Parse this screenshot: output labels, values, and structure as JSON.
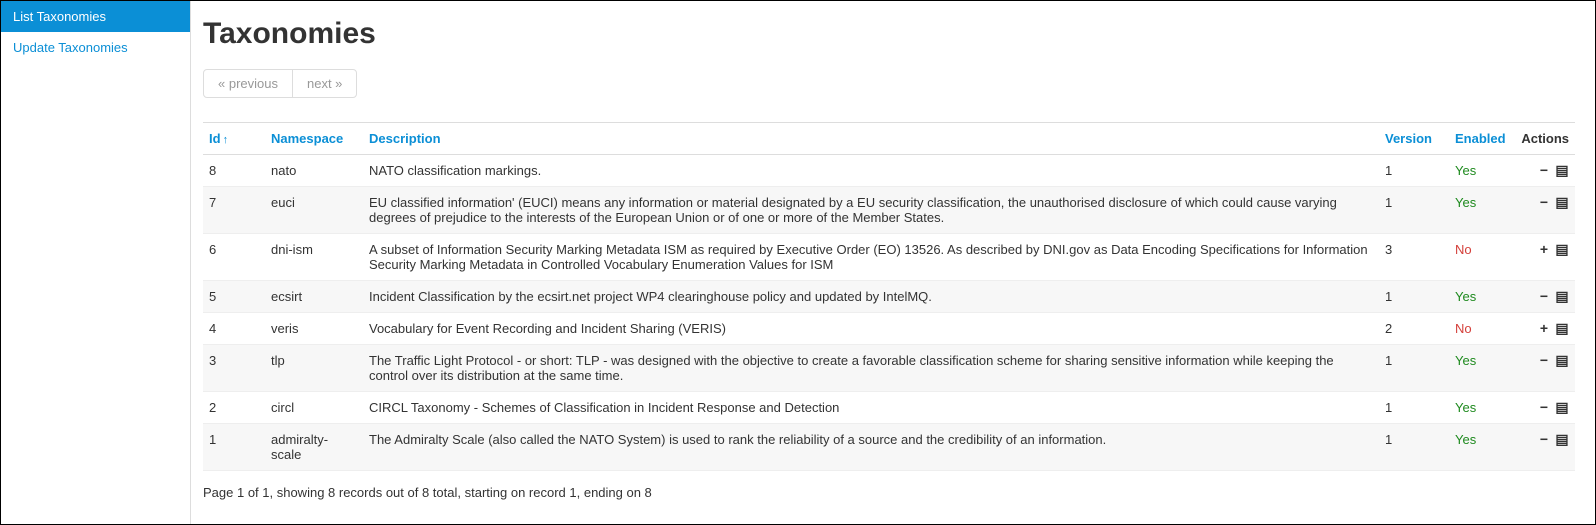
{
  "sidebar": {
    "items": [
      {
        "label": "List Taxonomies",
        "active": true
      },
      {
        "label": "Update Taxonomies",
        "active": false
      }
    ]
  },
  "page": {
    "title": "Taxonomies",
    "footer": "Page 1 of 1, showing 8 records out of 8 total, starting on record 1, ending on 8"
  },
  "pager": {
    "prev": "« previous",
    "next": "next »"
  },
  "table": {
    "headers": {
      "id": "Id",
      "namespace": "Namespace",
      "description": "Description",
      "version": "Version",
      "enabled": "Enabled",
      "actions": "Actions"
    },
    "sort_indicator": "↑",
    "rows": [
      {
        "id": "8",
        "namespace": "nato",
        "description": "NATO classification markings.",
        "version": "1",
        "enabled": "Yes",
        "enabled_bool": true
      },
      {
        "id": "7",
        "namespace": "euci",
        "description": "EU classified information' (EUCI) means any information or material designated by a EU security classification, the unauthorised disclosure of which could cause varying degrees of prejudice to the interests of the European Union or of one or more of the Member States.",
        "version": "1",
        "enabled": "Yes",
        "enabled_bool": true
      },
      {
        "id": "6",
        "namespace": "dni-ism",
        "description": "A subset of Information Security Marking Metadata ISM as required by Executive Order (EO) 13526. As described by DNI.gov as Data Encoding Specifications for Information Security Marking Metadata in Controlled Vocabulary Enumeration Values for ISM",
        "version": "3",
        "enabled": "No",
        "enabled_bool": false
      },
      {
        "id": "5",
        "namespace": "ecsirt",
        "description": "Incident Classification by the ecsirt.net project WP4 clearinghouse policy and updated by IntelMQ.",
        "version": "1",
        "enabled": "Yes",
        "enabled_bool": true
      },
      {
        "id": "4",
        "namespace": "veris",
        "description": "Vocabulary for Event Recording and Incident Sharing (VERIS)",
        "version": "2",
        "enabled": "No",
        "enabled_bool": false
      },
      {
        "id": "3",
        "namespace": "tlp",
        "description": "The Traffic Light Protocol - or short: TLP - was designed with the objective to create a favorable classification scheme for sharing sensitive information while keeping the control over its distribution at the same time.",
        "version": "1",
        "enabled": "Yes",
        "enabled_bool": true
      },
      {
        "id": "2",
        "namespace": "circl",
        "description": "CIRCL Taxonomy - Schemes of Classification in Incident Response and Detection",
        "version": "1",
        "enabled": "Yes",
        "enabled_bool": true
      },
      {
        "id": "1",
        "namespace": "admiralty-scale",
        "description": "The Admiralty Scale (also called the NATO System) is used to rank the reliability of a source and the credibility of an information.",
        "version": "1",
        "enabled": "Yes",
        "enabled_bool": true
      }
    ]
  },
  "colors": {
    "link": "#0b8fd6",
    "yes": "#1e8a1e",
    "no": "#d43f3a",
    "row_alt": "#f7f7f7",
    "border": "#dddddd"
  },
  "icons": {
    "minus": "−",
    "plus": "+",
    "list": "▤"
  }
}
